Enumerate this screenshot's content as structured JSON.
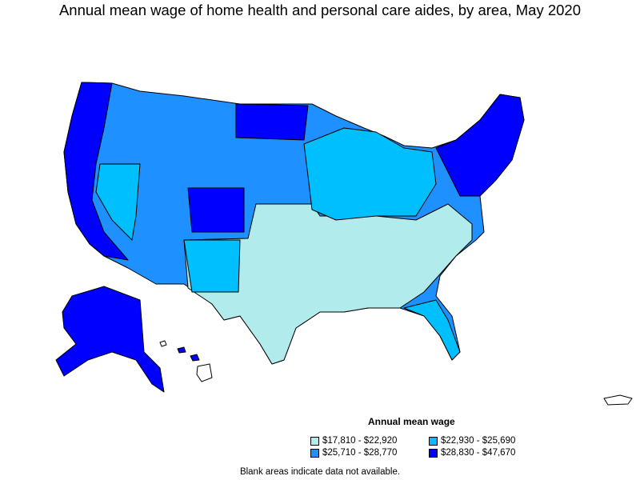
{
  "title": "Annual mean wage of home health and personal care aides, by area, May 2020",
  "legend": {
    "title": "Annual mean wage",
    "items": [
      {
        "label": "$17,810 - $22,920",
        "color": "#b2ebeb"
      },
      {
        "label": "$22,930 - $25,690",
        "color": "#00bfff"
      },
      {
        "label": "$25,710 - $28,770",
        "color": "#1e90ff"
      },
      {
        "label": "$28,830 - $47,670",
        "color": "#0000ff"
      }
    ]
  },
  "footnote": "Blank areas indicate data not available."
}
